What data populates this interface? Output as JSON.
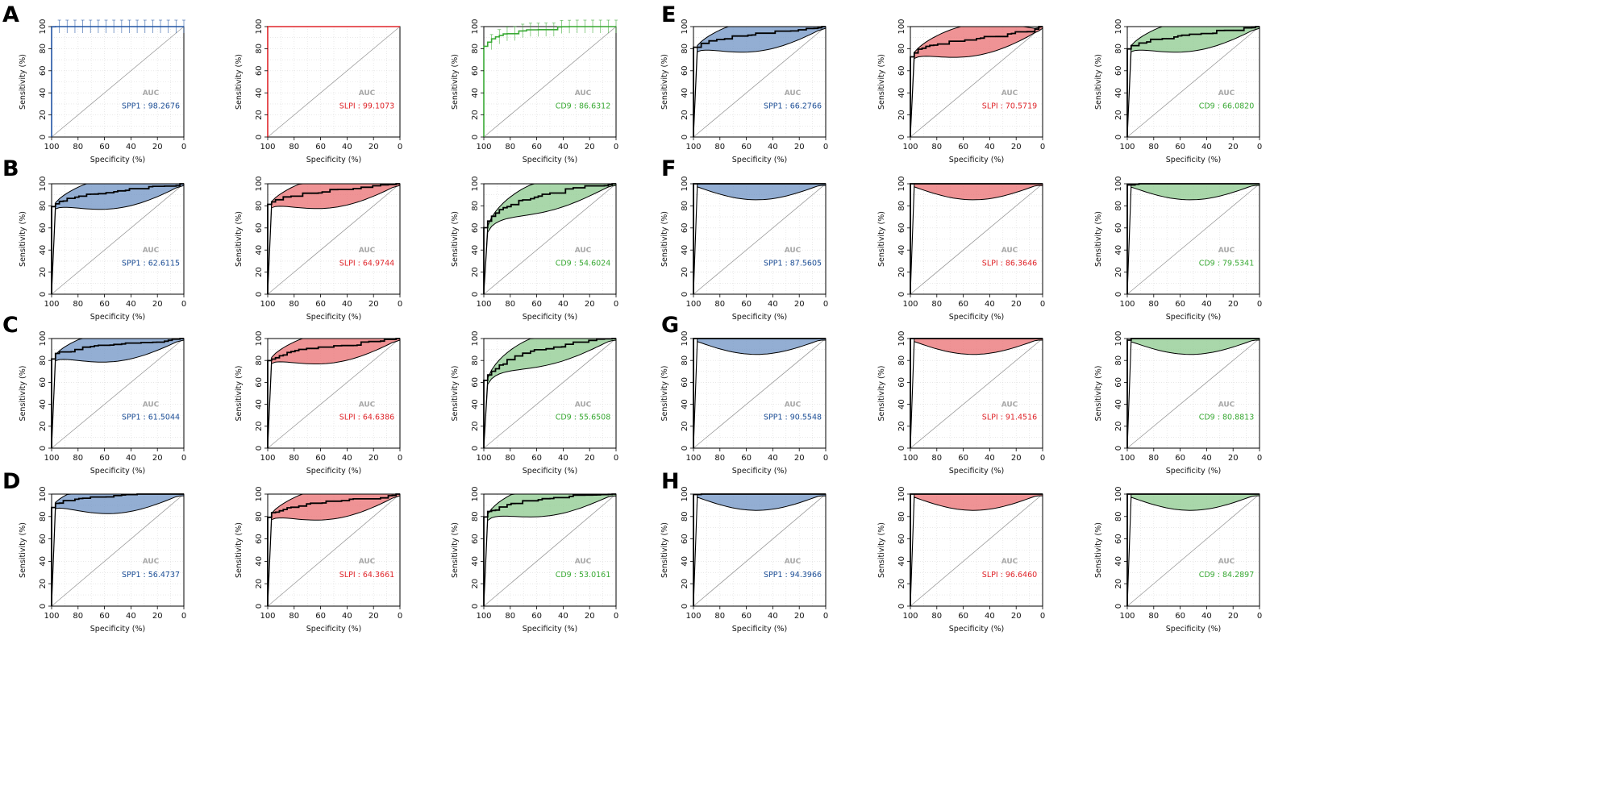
{
  "figure": {
    "axis_labels": {
      "x": "Specificity (%)",
      "y": "Sensitivity (%)"
    },
    "auc_title": "AUC",
    "ticks": [
      "100",
      "80",
      "60",
      "40",
      "20",
      "0"
    ],
    "colors": {
      "SPP1": {
        "line": "#2255a4",
        "fill": "#6f93c4",
        "text": "#1c4e96"
      },
      "SLPI": {
        "line": "#e0262b",
        "fill": "#ea6f72",
        "text": "#e0262b"
      },
      "CD9": {
        "line": "#3aaa35",
        "fill": "#8cc98d",
        "text": "#3aaa35"
      }
    }
  },
  "chart_data": [
    {
      "row": "A",
      "type": "line",
      "style": "step-errorbars",
      "marker": "SPP1",
      "auc": "98.2676",
      "auc_label": "SPP1 : 98.2676",
      "shape": [
        0.008,
        10
      ],
      "xlim": [
        100,
        0
      ],
      "ylim": [
        0,
        100
      ],
      "xlabel": "Specificity (%)",
      "ylabel": "Sensitivity (%)"
    },
    {
      "row": "A",
      "type": "line",
      "style": "step",
      "marker": "SLPI",
      "auc": "99.1073",
      "auc_label": "SLPI : 99.1073",
      "shape": [
        0.004,
        14
      ],
      "xlim": [
        100,
        0
      ],
      "ylim": [
        0,
        100
      ],
      "xlabel": "Specificity (%)",
      "ylabel": "Sensitivity (%)"
    },
    {
      "row": "A",
      "type": "line",
      "style": "step-errorbars",
      "marker": "CD9",
      "auc": "86.6312",
      "auc_label": "CD9 : 86.6312",
      "shape": [
        0.07,
        1.2
      ],
      "xlim": [
        100,
        0
      ],
      "ylim": [
        0,
        100
      ],
      "xlabel": "Specificity (%)",
      "ylabel": "Sensitivity (%)"
    },
    {
      "row": "B",
      "type": "line",
      "style": "band",
      "marker": "SPP1",
      "auc": "62.6115",
      "auc_label": "SPP1 : 62.6115",
      "shape": [
        0.02,
        0.6
      ],
      "xlim": [
        100,
        0
      ],
      "ylim": [
        0,
        100
      ],
      "xlabel": "Specificity (%)",
      "ylabel": "Sensitivity (%)"
    },
    {
      "row": "B",
      "type": "line",
      "style": "band",
      "marker": "SLPI",
      "auc": "64.9744",
      "auc_label": "SLPI : 64.9744",
      "shape": [
        0.02,
        0.62
      ],
      "xlim": [
        100,
        0
      ],
      "ylim": [
        0,
        100
      ],
      "xlabel": "Specificity (%)",
      "ylabel": "Sensitivity (%)"
    },
    {
      "row": "B",
      "type": "line",
      "style": "band",
      "marker": "CD9",
      "auc": "54.6024",
      "auc_label": "CD9 : 54.6024",
      "shape": [
        0.15,
        1.0
      ],
      "xlim": [
        100,
        0
      ],
      "ylim": [
        0,
        100
      ],
      "xlabel": "Specificity (%)",
      "ylabel": "Sensitivity (%)"
    },
    {
      "row": "C",
      "type": "line",
      "style": "band",
      "marker": "SPP1",
      "auc": "61.5044",
      "auc_label": "SPP1 : 61.5044",
      "shape": [
        0.02,
        0.65
      ],
      "xlim": [
        100,
        0
      ],
      "ylim": [
        0,
        100
      ],
      "xlabel": "Specificity (%)",
      "ylabel": "Sensitivity (%)"
    },
    {
      "row": "C",
      "type": "line",
      "style": "band",
      "marker": "SLPI",
      "auc": "64.6386",
      "auc_label": "SLPI : 64.6386",
      "shape": [
        0.02,
        0.6
      ],
      "xlim": [
        100,
        0
      ],
      "ylim": [
        0,
        100
      ],
      "xlabel": "Specificity (%)",
      "ylabel": "Sensitivity (%)"
    },
    {
      "row": "C",
      "type": "line",
      "style": "band",
      "marker": "CD9",
      "auc": "55.6508",
      "auc_label": "CD9 : 55.6508",
      "shape": [
        0.14,
        1.0
      ],
      "xlim": [
        100,
        0
      ],
      "ylim": [
        0,
        100
      ],
      "xlabel": "Specificity (%)",
      "ylabel": "Sensitivity (%)"
    },
    {
      "row": "D",
      "type": "line",
      "style": "band",
      "marker": "SPP1",
      "auc": "56.4737",
      "auc_label": "SPP1 : 56.4737",
      "shape": [
        0.02,
        0.85
      ],
      "xlim": [
        100,
        0
      ],
      "ylim": [
        0,
        100
      ],
      "xlabel": "Specificity (%)",
      "ylabel": "Sensitivity (%)"
    },
    {
      "row": "D",
      "type": "line",
      "style": "band",
      "marker": "SLPI",
      "auc": "64.3661",
      "auc_label": "SLPI : 64.3661",
      "shape": [
        0.02,
        0.6
      ],
      "xlim": [
        100,
        0
      ],
      "ylim": [
        0,
        100
      ],
      "xlabel": "Specificity (%)",
      "ylabel": "Sensitivity (%)"
    },
    {
      "row": "D",
      "type": "line",
      "style": "band",
      "marker": "CD9",
      "auc": "53.0161",
      "auc_label": "CD9 : 53.0161",
      "shape": [
        0.06,
        0.95
      ],
      "xlim": [
        100,
        0
      ],
      "ylim": [
        0,
        100
      ],
      "xlabel": "Specificity (%)",
      "ylabel": "Sensitivity (%)"
    },
    {
      "row": "E",
      "type": "line",
      "style": "band",
      "marker": "SPP1",
      "auc": "66.2766",
      "auc_label": "SPP1 : 66.2766",
      "shape": [
        0.02,
        0.6
      ],
      "xlim": [
        100,
        0
      ],
      "ylim": [
        0,
        100
      ],
      "xlabel": "Specificity (%)",
      "ylabel": "Sensitivity (%)"
    },
    {
      "row": "E",
      "type": "line",
      "style": "band",
      "marker": "SLPI",
      "auc": "70.5719",
      "auc_label": "SLPI : 70.5719",
      "shape": [
        0.02,
        0.5
      ],
      "xlim": [
        100,
        0
      ],
      "ylim": [
        0,
        100
      ],
      "xlabel": "Specificity (%)",
      "ylabel": "Sensitivity (%)"
    },
    {
      "row": "E",
      "type": "line",
      "style": "band",
      "marker": "CD9",
      "auc": "66.0820",
      "auc_label": "CD9 : 66.0820",
      "shape": [
        0.02,
        0.6
      ],
      "xlim": [
        100,
        0
      ],
      "ylim": [
        0,
        100
      ],
      "xlabel": "Specificity (%)",
      "ylabel": "Sensitivity (%)"
    },
    {
      "row": "F",
      "type": "line",
      "style": "band",
      "marker": "SPP1",
      "auc": "87.5605",
      "auc_label": "SPP1 : 87.5605",
      "shape": [
        0.02,
        3.5
      ],
      "xlim": [
        100,
        0
      ],
      "ylim": [
        0,
        100
      ],
      "xlabel": "Specificity (%)",
      "ylabel": "Sensitivity (%)"
    },
    {
      "row": "F",
      "type": "line",
      "style": "band",
      "marker": "SLPI",
      "auc": "86.3646",
      "auc_label": "SLPI : 86.3646",
      "shape": [
        0.02,
        3.0
      ],
      "xlim": [
        100,
        0
      ],
      "ylim": [
        0,
        100
      ],
      "xlabel": "Specificity (%)",
      "ylabel": "Sensitivity (%)"
    },
    {
      "row": "F",
      "type": "line",
      "style": "band",
      "marker": "CD9",
      "auc": "79.5341",
      "auc_label": "CD9 : 79.5341",
      "shape": [
        0.02,
        2.2
      ],
      "xlim": [
        100,
        0
      ],
      "ylim": [
        0,
        100
      ],
      "xlabel": "Specificity (%)",
      "ylabel": "Sensitivity (%)"
    },
    {
      "row": "G",
      "type": "line",
      "style": "band",
      "marker": "SPP1",
      "auc": "90.5548",
      "auc_label": "SPP1 : 90.5548",
      "shape": [
        0.02,
        4.5
      ],
      "xlim": [
        100,
        0
      ],
      "ylim": [
        0,
        100
      ],
      "xlabel": "Specificity (%)",
      "ylabel": "Sensitivity (%)"
    },
    {
      "row": "G",
      "type": "line",
      "style": "band",
      "marker": "SLPI",
      "auc": "91.4516",
      "auc_label": "SLPI : 91.4516",
      "shape": [
        0.02,
        5.0
      ],
      "xlim": [
        100,
        0
      ],
      "ylim": [
        0,
        100
      ],
      "xlabel": "Specificity (%)",
      "ylabel": "Sensitivity (%)"
    },
    {
      "row": "G",
      "type": "line",
      "style": "band",
      "marker": "CD9",
      "auc": "80.8813",
      "auc_label": "CD9 : 80.8813",
      "shape": [
        0.02,
        2.4
      ],
      "xlim": [
        100,
        0
      ],
      "ylim": [
        0,
        100
      ],
      "xlabel": "Specificity (%)",
      "ylabel": "Sensitivity (%)"
    },
    {
      "row": "H",
      "type": "line",
      "style": "band",
      "marker": "SPP1",
      "auc": "94.3966",
      "auc_label": "SPP1 : 94.3966",
      "shape": [
        0.02,
        7.0
      ],
      "xlim": [
        100,
        0
      ],
      "ylim": [
        0,
        100
      ],
      "xlabel": "Specificity (%)",
      "ylabel": "Sensitivity (%)"
    },
    {
      "row": "H",
      "type": "line",
      "style": "band",
      "marker": "SLPI",
      "auc": "96.6460",
      "auc_label": "SLPI : 96.6460",
      "shape": [
        0.02,
        10.0
      ],
      "xlim": [
        100,
        0
      ],
      "ylim": [
        0,
        100
      ],
      "xlabel": "Specificity (%)",
      "ylabel": "Sensitivity (%)"
    },
    {
      "row": "H",
      "type": "line",
      "style": "band",
      "marker": "CD9",
      "auc": "84.2897",
      "auc_label": "CD9 : 84.2897",
      "shape": [
        0.02,
        3.0
      ],
      "xlim": [
        100,
        0
      ],
      "ylim": [
        0,
        100
      ],
      "xlabel": "Specificity (%)",
      "ylabel": "Sensitivity (%)"
    }
  ]
}
